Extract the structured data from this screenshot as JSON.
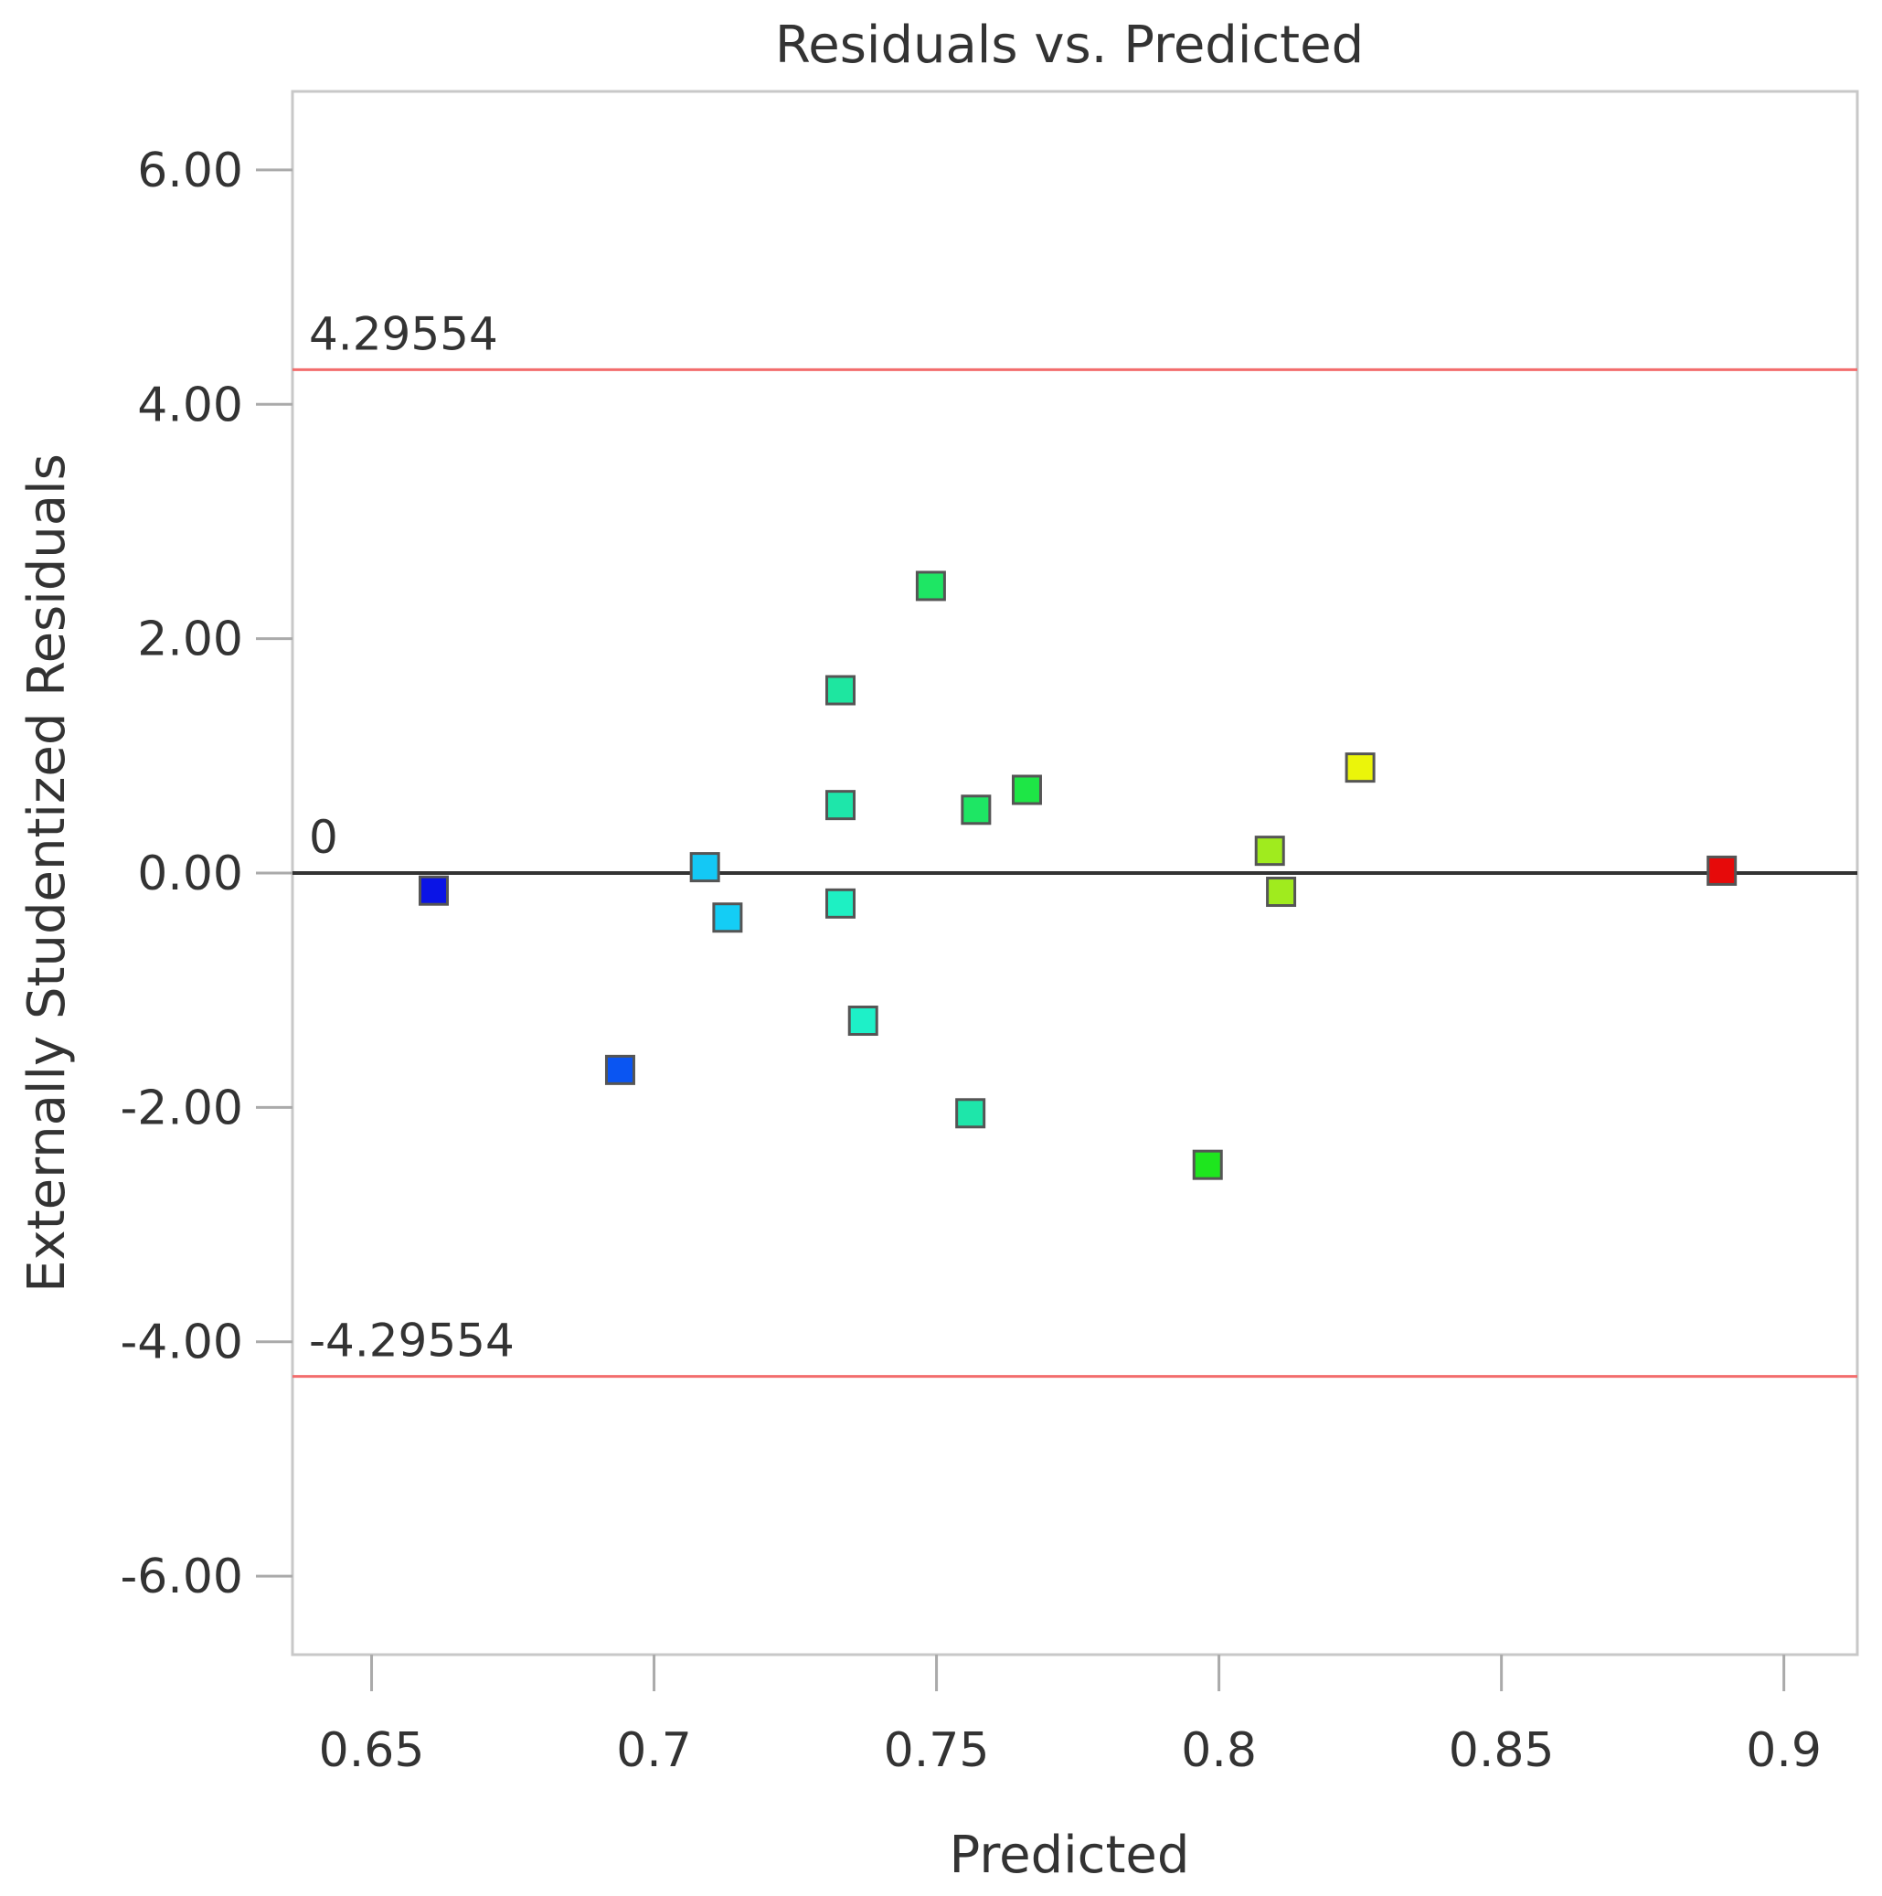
{
  "chart_data": {
    "type": "scatter",
    "title": "Residuals vs. Predicted",
    "xlabel": "Predicted",
    "ylabel": "Externally Studentized Residuals",
    "xlim": [
      0.636,
      0.913
    ],
    "ylim": [
      -6.67,
      6.67
    ],
    "x_ticks": [
      0.65,
      0.7,
      0.75,
      0.8,
      0.85,
      0.9
    ],
    "x_tick_labels": [
      "0.65",
      "0.7",
      "0.75",
      "0.8",
      "0.85",
      "0.9"
    ],
    "y_ticks": [
      6,
      4,
      2,
      0,
      -2,
      -4,
      -6
    ],
    "y_tick_labels": [
      "6.00",
      "4.00",
      "2.00",
      "0.00",
      "-2.00",
      "-4.00",
      "-6.00"
    ],
    "reference_lines": [
      {
        "value": 4.29554,
        "label": "4.29554",
        "color": "#f26d6d"
      },
      {
        "value": 0,
        "label": "0",
        "color": "#333333"
      },
      {
        "value": -4.29554,
        "label": "-4.29554",
        "color": "#f26d6d"
      }
    ],
    "points": [
      {
        "x": 0.661,
        "y": -0.15,
        "color": "#0a14e6"
      },
      {
        "x": 0.694,
        "y": -1.68,
        "color": "#0a55f2"
      },
      {
        "x": 0.709,
        "y": 0.05,
        "color": "#14c8f5"
      },
      {
        "x": 0.713,
        "y": -0.38,
        "color": "#14cdf5"
      },
      {
        "x": 0.733,
        "y": 1.56,
        "color": "#1ee6a0"
      },
      {
        "x": 0.733,
        "y": 0.58,
        "color": "#1ee6aa"
      },
      {
        "x": 0.733,
        "y": -0.26,
        "color": "#1ef0c3"
      },
      {
        "x": 0.737,
        "y": -1.26,
        "color": "#1ef0c8"
      },
      {
        "x": 0.749,
        "y": 2.45,
        "color": "#1ee664"
      },
      {
        "x": 0.756,
        "y": -2.05,
        "color": "#1ee6aa"
      },
      {
        "x": 0.757,
        "y": 0.54,
        "color": "#1ee664"
      },
      {
        "x": 0.766,
        "y": 0.71,
        "color": "#1ee646"
      },
      {
        "x": 0.798,
        "y": -2.49,
        "color": "#1ee61e"
      },
      {
        "x": 0.809,
        "y": 0.19,
        "color": "#a0eb1e"
      },
      {
        "x": 0.811,
        "y": -0.16,
        "color": "#a0eb1e"
      },
      {
        "x": 0.825,
        "y": 0.9,
        "color": "#ebf50a"
      },
      {
        "x": 0.889,
        "y": 0.02,
        "color": "#e60a0a"
      }
    ]
  }
}
